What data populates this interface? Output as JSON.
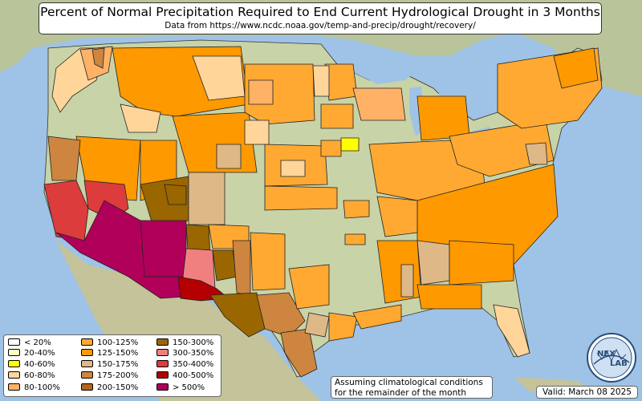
{
  "title": "Percent of Normal Precipitation Required to End Current Hydrological Drought in 3 Months",
  "subtitle": "Data from https://www.ncdc.noaa.gov/temp-and-precip/drought/recovery/",
  "legend": [
    {
      "label": "< 20%",
      "color": "#ffffff"
    },
    {
      "label": "20-40%",
      "color": "#ffffc0"
    },
    {
      "label": "40-60%",
      "color": "#ffff00"
    },
    {
      "label": "60-80%",
      "color": "#ffd59a"
    },
    {
      "label": "80-100%",
      "color": "#ffb266"
    },
    {
      "label": "100-125%",
      "color": "#ffa933"
    },
    {
      "label": "125-150%",
      "color": "#ff9900"
    },
    {
      "label": "150-175%",
      "color": "#deb887"
    },
    {
      "label": "175-200%",
      "color": "#cd853f"
    },
    {
      "label": "200-150%",
      "color": "#b5651d"
    },
    {
      "label": "150-300%",
      "color": "#996600"
    },
    {
      "label": "300-350%",
      "color": "#f08080"
    },
    {
      "label": "350-400%",
      "color": "#dc3c3c"
    },
    {
      "label": "400-500%",
      "color": "#b40000"
    },
    {
      "label": "> 500%",
      "color": "#b0005a"
    }
  ],
  "note": {
    "line1": "Assuming climatological conditions",
    "line2": "for the remainder of the month"
  },
  "valid": "Valid: March 08 2025",
  "logo": {
    "text_top": "NEX",
    "text_bottom": "LAB"
  },
  "colors": {
    "ocean": "#9fc3e6",
    "land": "#c8cda6",
    "no_drought": "#c9d3a8"
  }
}
